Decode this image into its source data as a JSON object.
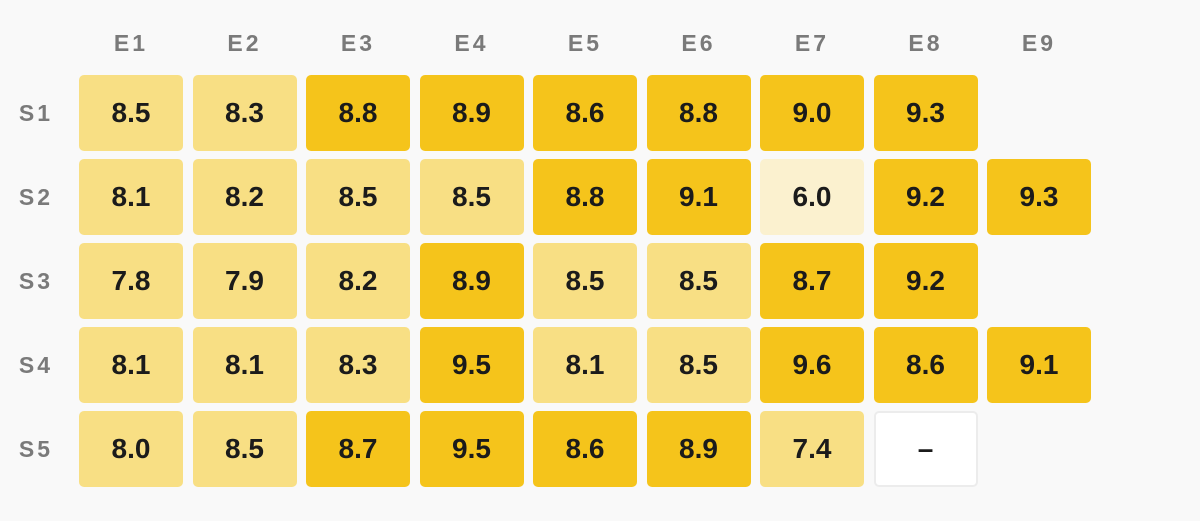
{
  "chart_data": {
    "type": "heatmap",
    "columns": [
      "E1",
      "E2",
      "E3",
      "E4",
      "E5",
      "E6",
      "E7",
      "E8",
      "E9"
    ],
    "rows": [
      "S1",
      "S2",
      "S3",
      "S4",
      "S5"
    ],
    "values": [
      [
        "8.5",
        "8.3",
        "8.8",
        "8.9",
        "8.6",
        "8.8",
        "9.0",
        "9.3",
        null
      ],
      [
        "8.1",
        "8.2",
        "8.5",
        "8.5",
        "8.8",
        "9.1",
        "6.0",
        "9.2",
        "9.3"
      ],
      [
        "7.8",
        "7.9",
        "8.2",
        "8.9",
        "8.5",
        "8.5",
        "8.7",
        "9.2",
        null
      ],
      [
        "8.1",
        "8.1",
        "8.3",
        "9.5",
        "8.1",
        "8.5",
        "9.6",
        "8.6",
        "9.1"
      ],
      [
        "8.0",
        "8.5",
        "8.7",
        "9.5",
        "8.6",
        "8.9",
        "7.4",
        "–",
        null
      ]
    ],
    "missing_label": "–",
    "color_scale": [
      {
        "min": 0,
        "color": "#fbf1cf"
      },
      {
        "min": 7,
        "color": "#f8df84"
      },
      {
        "min": 8.6,
        "color": "#f5c41b"
      }
    ]
  }
}
